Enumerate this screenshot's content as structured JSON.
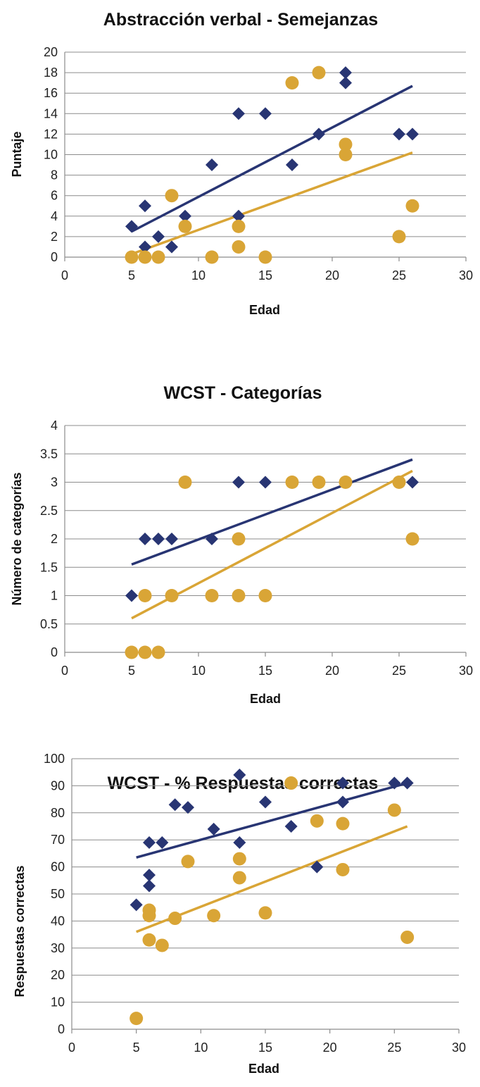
{
  "colors": {
    "series_a": "#283573",
    "series_b": "#d9a536",
    "grid": "#8c8c8c"
  },
  "chart_data": [
    {
      "type": "scatter",
      "title": "Abstracción verbal - Semejanzas",
      "xlabel": "Edad",
      "ylabel": "Puntaje",
      "xlim": [
        0,
        30
      ],
      "ylim": [
        0,
        20
      ],
      "xticks": [
        0,
        5,
        10,
        15,
        20,
        25,
        30
      ],
      "yticks": [
        0,
        2,
        4,
        6,
        8,
        10,
        12,
        14,
        16,
        18,
        20
      ],
      "grid": "horizontal",
      "series": [
        {
          "marker": "diamond",
          "color": "#283573",
          "points": [
            [
              5,
              3
            ],
            [
              6,
              5
            ],
            [
              6,
              1
            ],
            [
              7,
              2
            ],
            [
              8,
              1
            ],
            [
              9,
              4
            ],
            [
              11,
              9
            ],
            [
              13,
              14
            ],
            [
              13,
              4
            ],
            [
              15,
              14
            ],
            [
              17,
              9
            ],
            [
              19,
              12
            ],
            [
              21,
              18
            ],
            [
              21,
              17
            ],
            [
              25,
              12
            ],
            [
              26,
              12
            ]
          ],
          "trend": [
            [
              5,
              2.5
            ],
            [
              26,
              16.7
            ]
          ]
        },
        {
          "marker": "circle",
          "color": "#d9a536",
          "points": [
            [
              5,
              0
            ],
            [
              6,
              0
            ],
            [
              7,
              0
            ],
            [
              8,
              6
            ],
            [
              9,
              3
            ],
            [
              11,
              0
            ],
            [
              13,
              3
            ],
            [
              13,
              1
            ],
            [
              15,
              0
            ],
            [
              17,
              17
            ],
            [
              19,
              18
            ],
            [
              21,
              11
            ],
            [
              21,
              10
            ],
            [
              25,
              2
            ],
            [
              26,
              5
            ]
          ],
          "trend": [
            [
              5,
              0.3
            ],
            [
              26,
              10.2
            ]
          ]
        }
      ]
    },
    {
      "type": "scatter",
      "title": "WCST - Categorías",
      "xlabel": "Edad",
      "ylabel": "Número de categorías",
      "xlim": [
        0,
        30
      ],
      "ylim": [
        0,
        4
      ],
      "xticks": [
        0,
        5,
        10,
        15,
        20,
        25,
        30
      ],
      "yticks": [
        0,
        0.5,
        1,
        1.5,
        2,
        2.5,
        3,
        3.5,
        4
      ],
      "grid": "horizontal",
      "series": [
        {
          "marker": "diamond",
          "color": "#283573",
          "points": [
            [
              5,
              1
            ],
            [
              6,
              2
            ],
            [
              7,
              2
            ],
            [
              8,
              2
            ],
            [
              11,
              2
            ],
            [
              13,
              3
            ],
            [
              15,
              3
            ],
            [
              26,
              3
            ]
          ],
          "trend": [
            [
              5,
              1.55
            ],
            [
              26,
              3.4
            ]
          ]
        },
        {
          "marker": "circle",
          "color": "#d9a536",
          "points": [
            [
              5,
              0
            ],
            [
              6,
              0
            ],
            [
              7,
              0
            ],
            [
              6,
              1
            ],
            [
              8,
              1
            ],
            [
              9,
              3
            ],
            [
              11,
              1
            ],
            [
              13,
              2
            ],
            [
              13,
              1
            ],
            [
              15,
              1
            ],
            [
              17,
              3
            ],
            [
              19,
              3
            ],
            [
              21,
              3
            ],
            [
              25,
              3
            ],
            [
              26,
              2
            ]
          ],
          "trend": [
            [
              5,
              0.6
            ],
            [
              26,
              3.2
            ]
          ]
        }
      ]
    },
    {
      "type": "scatter",
      "title": "WCST  -  % Respuestas correctas",
      "xlabel": "Edad",
      "ylabel": "Respuestas correctas",
      "xlim": [
        0,
        30
      ],
      "ylim": [
        0,
        100
      ],
      "xticks": [
        0,
        5,
        10,
        15,
        20,
        25,
        30
      ],
      "yticks": [
        0,
        10,
        20,
        30,
        40,
        50,
        60,
        70,
        80,
        90,
        100
      ],
      "grid": "horizontal",
      "series": [
        {
          "marker": "diamond",
          "color": "#283573",
          "points": [
            [
              5,
              46
            ],
            [
              6,
              69
            ],
            [
              6,
              57
            ],
            [
              6,
              53
            ],
            [
              7,
              69
            ],
            [
              8,
              83
            ],
            [
              9,
              82
            ],
            [
              11,
              74
            ],
            [
              13,
              94
            ],
            [
              13,
              69
            ],
            [
              15,
              84
            ],
            [
              17,
              75
            ],
            [
              19,
              60
            ],
            [
              21,
              91
            ],
            [
              21,
              84
            ],
            [
              25,
              91
            ],
            [
              26,
              91
            ]
          ],
          "trend": [
            [
              5,
              63.5
            ],
            [
              26,
              91
            ]
          ]
        },
        {
          "marker": "circle",
          "color": "#d9a536",
          "points": [
            [
              5,
              4
            ],
            [
              6,
              44
            ],
            [
              6,
              42
            ],
            [
              6,
              33
            ],
            [
              7,
              31
            ],
            [
              8,
              41
            ],
            [
              9,
              62
            ],
            [
              11,
              42
            ],
            [
              13,
              63
            ],
            [
              13,
              56
            ],
            [
              15,
              43
            ],
            [
              17,
              91
            ],
            [
              19,
              77
            ],
            [
              21,
              76
            ],
            [
              21,
              59
            ],
            [
              25,
              81
            ],
            [
              26,
              34
            ]
          ],
          "trend": [
            [
              5,
              36
            ],
            [
              26,
              75
            ]
          ]
        }
      ]
    }
  ]
}
